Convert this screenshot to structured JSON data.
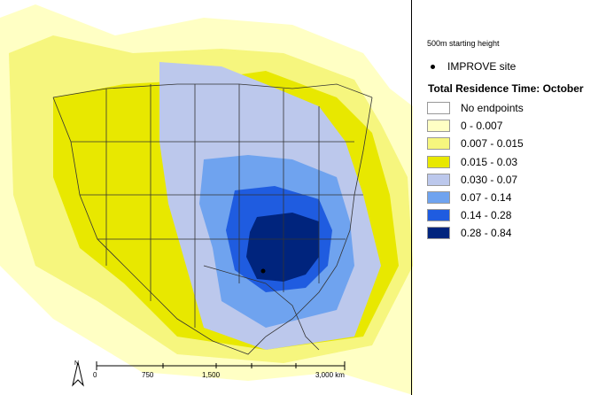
{
  "legend": {
    "subtitle": "500m starting height",
    "site_label": "IMPROVE site",
    "title": "Total Residence Time: October",
    "items": [
      {
        "label": "No endpoints",
        "color": "#ffffff"
      },
      {
        "label": "0 - 0.007",
        "color": "#ffffc4"
      },
      {
        "label": "0.007 - 0.015",
        "color": "#f6f67e"
      },
      {
        "label": "0.015 - 0.03",
        "color": "#e8e800"
      },
      {
        "label": "0.030 - 0.07",
        "color": "#bcc8ec"
      },
      {
        "label": "0.07 - 0.14",
        "color": "#6fa3ef"
      },
      {
        "label": "0.14 - 0.28",
        "color": "#1f5ce0"
      },
      {
        "label": "0.28 - 0.84",
        "color": "#00247d"
      }
    ]
  },
  "scale": {
    "labels": [
      "0",
      "750",
      "1,500",
      "3,000 km"
    ],
    "north_label": "N"
  },
  "site": {
    "name": "IMPROVE site"
  }
}
